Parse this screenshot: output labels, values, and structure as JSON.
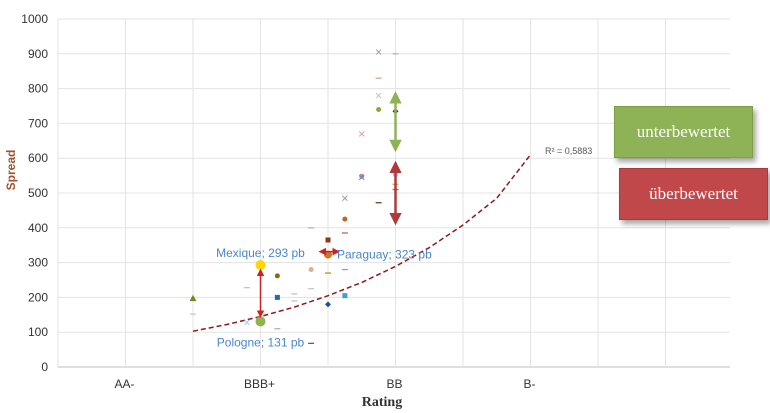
{
  "chart_data": {
    "type": "scatter",
    "xlabel": "Rating",
    "ylabel": "Spread",
    "categories": [
      "",
      "AA-",
      "",
      "BBB+",
      "",
      "BB",
      "",
      "B-"
    ],
    "category_ticks": [
      "AA-",
      "BBB+",
      "BB",
      "B-"
    ],
    "ylim": [
      0,
      1000
    ],
    "yticks": [
      0,
      100,
      200,
      300,
      400,
      500,
      600,
      700,
      800,
      900,
      1000
    ],
    "grid": {
      "horizontal": true,
      "vertical": true
    },
    "r_squared_label": "R² = 0,5883",
    "trendline": {
      "type": "exponential",
      "style": "dashed",
      "color": "#8b1a1a",
      "points": [
        [
          2,
          103
        ],
        [
          2.5,
          122
        ],
        [
          3,
          145
        ],
        [
          3.5,
          172
        ],
        [
          4,
          205
        ],
        [
          4.5,
          243
        ],
        [
          5,
          289
        ],
        [
          5.5,
          343
        ],
        [
          6,
          408
        ],
        [
          6.5,
          485
        ],
        [
          7,
          610
        ]
      ]
    },
    "points": [
      {
        "x": 2,
        "y": 198,
        "color": "#6b8e23",
        "marker": "triangle"
      },
      {
        "x": 2,
        "y": 152,
        "color": "#d4c4b8",
        "marker": "dash"
      },
      {
        "x": 2.8,
        "y": 228,
        "color": "#c0c0c0",
        "marker": "dash"
      },
      {
        "x": 2.8,
        "y": 128,
        "color": "#9ecae1",
        "marker": "x"
      },
      {
        "x": 3,
        "y": 293,
        "color": "#ffd700",
        "marker": "circle",
        "size": 8
      },
      {
        "x": 3,
        "y": 131,
        "color": "#8fb34d",
        "marker": "circle",
        "size": 8
      },
      {
        "x": 3.25,
        "y": 262,
        "color": "#8b6914",
        "marker": "circle"
      },
      {
        "x": 3.25,
        "y": 200,
        "color": "#1f6fa8",
        "marker": "square"
      },
      {
        "x": 3.25,
        "y": 110,
        "color": "#b0a0c0",
        "marker": "dash"
      },
      {
        "x": 3.5,
        "y": 210,
        "color": "#c0c0c0",
        "marker": "dash"
      },
      {
        "x": 3.5,
        "y": 190,
        "color": "#c0c0c0",
        "marker": "dash"
      },
      {
        "x": 3.75,
        "y": 400,
        "color": "#b0b0b0",
        "marker": "dash"
      },
      {
        "x": 3.75,
        "y": 280,
        "color": "#e0b090",
        "marker": "circle"
      },
      {
        "x": 3.75,
        "y": 225,
        "color": "#c0c0c0",
        "marker": "dash"
      },
      {
        "x": 3.75,
        "y": 68,
        "color": "#555555",
        "marker": "dash"
      },
      {
        "x": 4,
        "y": 365,
        "color": "#8b3a1a",
        "marker": "square"
      },
      {
        "x": 4,
        "y": 323,
        "color": "#c87820",
        "marker": "circle",
        "size": 6
      },
      {
        "x": 4,
        "y": 270,
        "color": "#b8860b",
        "marker": "dash"
      },
      {
        "x": 4,
        "y": 180,
        "color": "#1f4fa8",
        "marker": "diamond"
      },
      {
        "x": 4.25,
        "y": 485,
        "color": "#a0a0a0",
        "marker": "x"
      },
      {
        "x": 4.25,
        "y": 425,
        "color": "#b8662a",
        "marker": "circle"
      },
      {
        "x": 4.25,
        "y": 385,
        "color": "#c05050",
        "marker": "dash"
      },
      {
        "x": 4.25,
        "y": 280,
        "color": "#999999",
        "marker": "dash"
      },
      {
        "x": 4.25,
        "y": 205,
        "color": "#3aa0d8",
        "marker": "square"
      },
      {
        "x": 4.5,
        "y": 670,
        "color": "#e0a0a0",
        "marker": "x"
      },
      {
        "x": 4.5,
        "y": 548,
        "color": "#c080a0",
        "marker": "circle"
      },
      {
        "x": 4.5,
        "y": 545,
        "color": "#8080c0",
        "marker": "x"
      },
      {
        "x": 4.75,
        "y": 905,
        "color": "#a0a0a0",
        "marker": "x"
      },
      {
        "x": 4.75,
        "y": 830,
        "color": "#d0a080",
        "marker": "dash"
      },
      {
        "x": 4.75,
        "y": 780,
        "color": "#c0c0c0",
        "marker": "x"
      },
      {
        "x": 4.75,
        "y": 740,
        "color": "#9aa040",
        "marker": "circle"
      },
      {
        "x": 4.75,
        "y": 472,
        "color": "#5a3010",
        "marker": "dash"
      },
      {
        "x": 5,
        "y": 900,
        "color": "#b0b0b0",
        "marker": "dash"
      },
      {
        "x": 5,
        "y": 735,
        "color": "#3a2a8a",
        "marker": "diamond"
      },
      {
        "x": 5,
        "y": 555,
        "color": "#9ecae1",
        "marker": "square"
      },
      {
        "x": 5,
        "y": 525,
        "color": "#e8a030",
        "marker": "dash"
      },
      {
        "x": 5,
        "y": 510,
        "color": "#d06030",
        "marker": "dash"
      }
    ],
    "annotations": [
      {
        "text": "Mexique; 293 pb",
        "x": 3,
        "y": 293
      },
      {
        "text": "Pologne; 131 pb",
        "x": 3,
        "y": 131
      },
      {
        "text": "Paraguay; 323 pb",
        "x": 4,
        "y": 323
      }
    ],
    "callouts": [
      {
        "text": "unterbewertet",
        "color": "#8db356"
      },
      {
        "text": "überbewertet",
        "color": "#c0474a"
      }
    ],
    "arrows": [
      {
        "direction": "vertical",
        "from_y": 131,
        "to_y": 293,
        "at_x": 3,
        "color": "#cc2222"
      },
      {
        "direction": "horizontal",
        "from_x": 3,
        "to_x": 4,
        "at_y": 323,
        "color": "#cc2222"
      },
      {
        "direction": "vertical",
        "from_y": 610,
        "to_y": 800,
        "at_x": 5,
        "color": "#8db356"
      },
      {
        "direction": "vertical",
        "from_y": 400,
        "to_y": 600,
        "at_x": 5,
        "color": "#b03a3a"
      }
    ]
  }
}
